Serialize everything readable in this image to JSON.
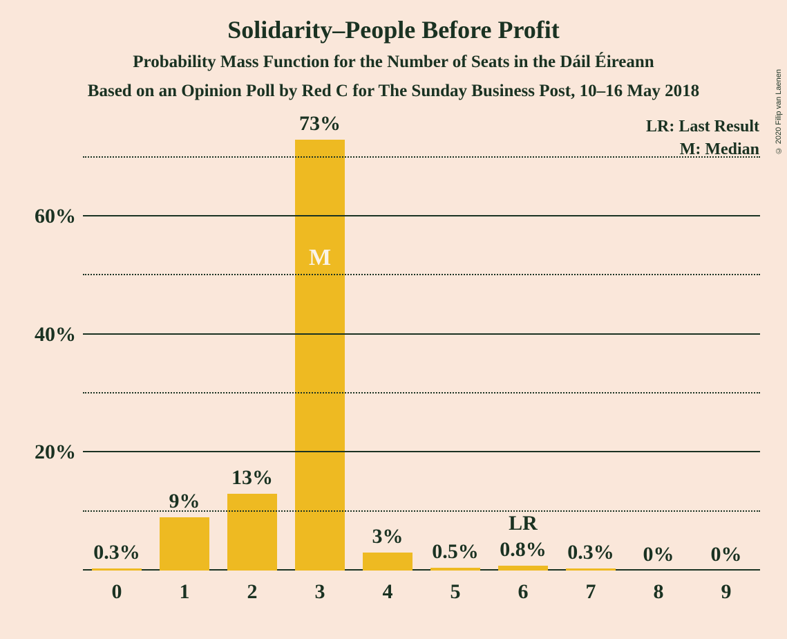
{
  "background_color": "#fae7da",
  "text_color": "#1a3222",
  "copyright": "© 2020 Filip van Laenen",
  "title": {
    "text": "Solidarity–People Before Profit",
    "fontsize": 36
  },
  "subtitle": {
    "text": "Probability Mass Function for the Number of Seats in the Dáil Éireann",
    "fontsize": 25
  },
  "subtitle2": {
    "text": "Based on an Opinion Poll by Red C for The Sunday Business Post, 10–16 May 2018",
    "fontsize": 25
  },
  "legend": {
    "items": [
      "LR: Last Result",
      "M: Median"
    ],
    "fontsize": 24
  },
  "y_axis": {
    "max": 75,
    "major_ticks": [
      20,
      40,
      60
    ],
    "minor_ticks": [
      10,
      30,
      50,
      70
    ],
    "label_fontsize": 30,
    "label_suffix": "%",
    "grid_color": "#1a3222"
  },
  "x_axis": {
    "label_fontsize": 30,
    "axis_color": "#1a3222"
  },
  "bars": {
    "color": "#eeba22",
    "value_fontsize": 30,
    "inner_label_fontsize": 34,
    "inner_label_color": "#faf3e8",
    "extra_label_fontsize": 30,
    "data": [
      {
        "x": "0",
        "value": 0.3,
        "label": "0.3%"
      },
      {
        "x": "1",
        "value": 9,
        "label": "9%"
      },
      {
        "x": "2",
        "value": 13,
        "label": "13%"
      },
      {
        "x": "3",
        "value": 73,
        "label": "73%",
        "inner_label": "M",
        "inner_label_offset_from_top": 190
      },
      {
        "x": "4",
        "value": 3,
        "label": "3%"
      },
      {
        "x": "5",
        "value": 0.5,
        "label": "0.5%"
      },
      {
        "x": "6",
        "value": 0.8,
        "label": "0.8%",
        "extra_label": "LR",
        "extra_label_raise": 38
      },
      {
        "x": "7",
        "value": 0.3,
        "label": "0.3%"
      },
      {
        "x": "8",
        "value": 0,
        "label": "0%"
      },
      {
        "x": "9",
        "value": 0,
        "label": "0%"
      }
    ]
  }
}
